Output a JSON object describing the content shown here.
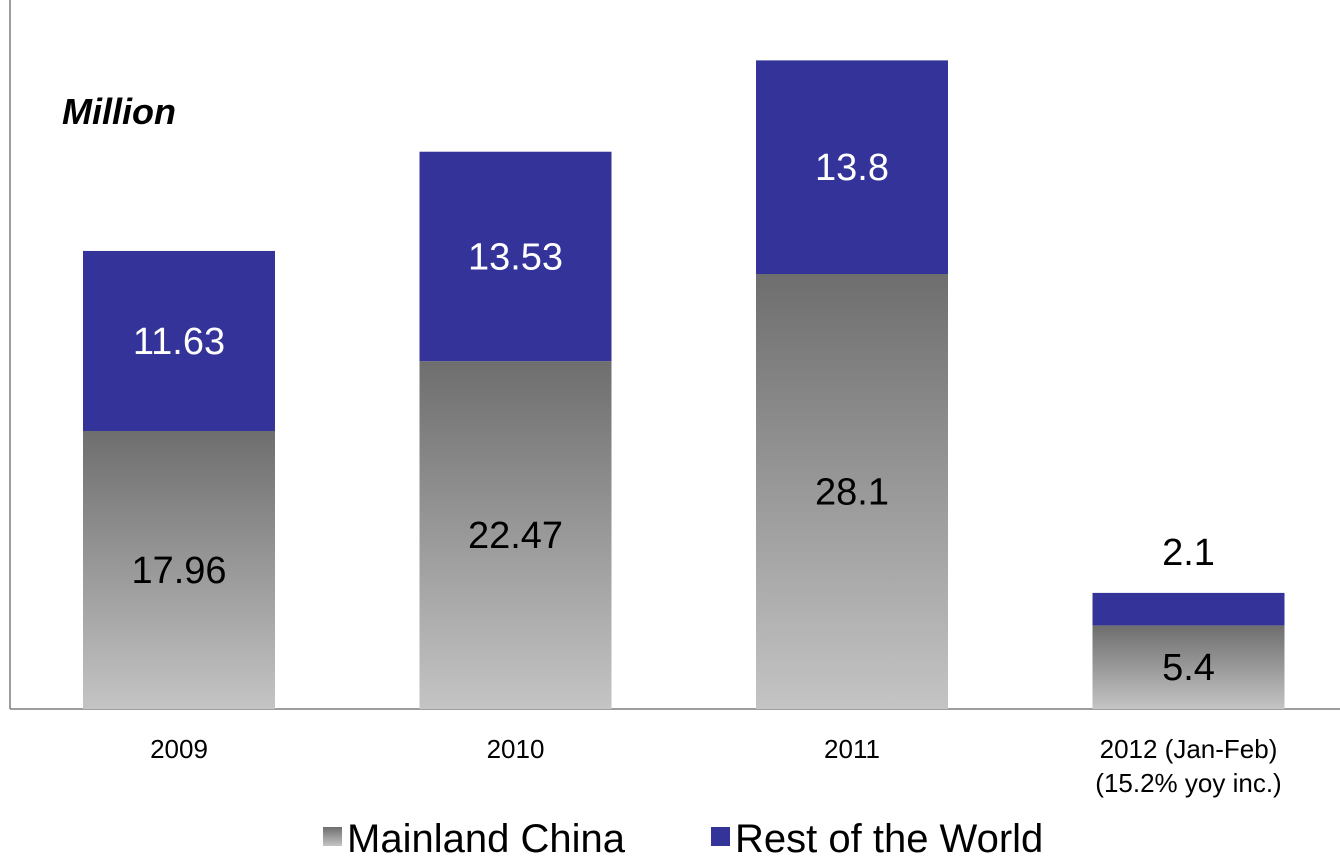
{
  "chart_data": {
    "type": "bar",
    "stacked": true,
    "unit_label": "Million",
    "categories": [
      [
        "2009"
      ],
      [
        "2010"
      ],
      [
        "2011"
      ],
      [
        "2012 (Jan-Feb)",
        "(15.2% yoy inc.)"
      ]
    ],
    "series": [
      {
        "name": "Mainland China",
        "values": [
          17.96,
          22.47,
          28.1,
          5.4
        ],
        "color": "#8c8c8c",
        "label_color": "#000000"
      },
      {
        "name": "Rest of the World",
        "values": [
          11.63,
          13.53,
          13.8,
          2.1
        ],
        "color": "#333399",
        "label_color": "#ffffff"
      }
    ],
    "ylim": [
      0,
      41.9
    ],
    "grid": false,
    "legend_position": "bottom"
  }
}
